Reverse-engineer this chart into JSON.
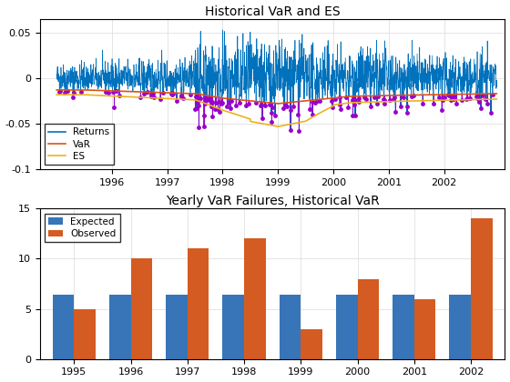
{
  "title1": "Historical VaR and ES",
  "title2": "Yearly VaR Failures, Historical VaR",
  "years_bar": [
    1995,
    1996,
    1997,
    1998,
    1999,
    2000,
    2001,
    2002
  ],
  "expected": [
    6.4,
    6.4,
    6.4,
    6.4,
    6.4,
    6.4,
    6.4,
    6.4
  ],
  "observed": [
    5,
    10,
    11,
    12,
    3,
    8,
    6,
    14
  ],
  "bar_color_expected": "#3775b8",
  "bar_color_observed": "#d45b21",
  "line1_color": "#0072BD",
  "var_color": "#D95319",
  "es_color": "#EDB120",
  "marker_color": "#9900CC",
  "ylim1": [
    -0.1,
    0.065
  ],
  "ylim2": [
    0,
    15
  ],
  "yticks1": [
    -0.1,
    -0.05,
    0,
    0.05
  ],
  "yticks2": [
    0,
    5,
    10,
    15
  ],
  "seed": 42,
  "n_points": 2000,
  "background_color": "#ffffff",
  "grid_color": "#e0e0e0"
}
